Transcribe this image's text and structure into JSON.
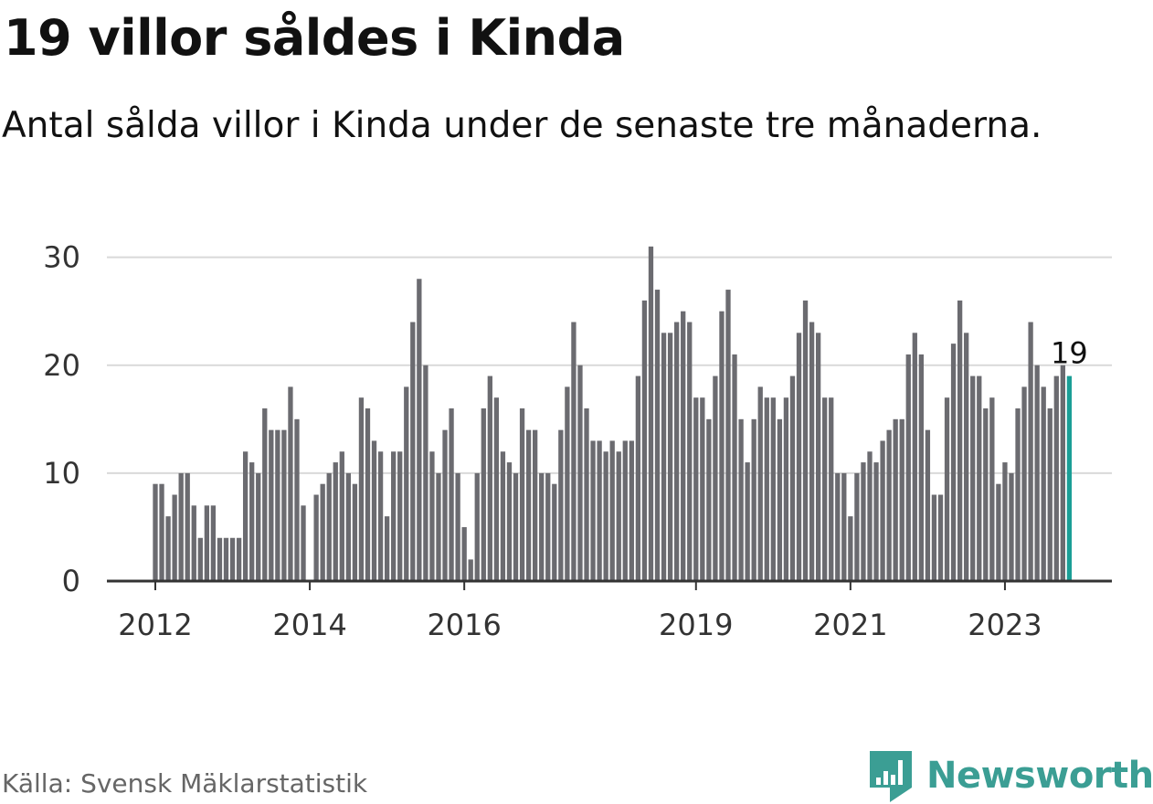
{
  "header": {
    "title": "19 villor såldes i Kinda",
    "subtitle": "Antal sålda villor i Kinda under de senaste tre månaderna."
  },
  "footer": {
    "source": "Källa: Svensk Mäklarstatistik",
    "brand": "Newsworthy"
  },
  "colors": {
    "bar": "#6b6b70",
    "highlight": "#1a9e96",
    "brand": "#3b9e94",
    "grid": "#d9d9d9",
    "axis": "#333333"
  },
  "chart_data": {
    "type": "bar",
    "x_start": "2012-01",
    "x_tick_labels": [
      "2012",
      "2014",
      "2016",
      "2019",
      "2021",
      "2023"
    ],
    "y_ticks": [
      0,
      10,
      20,
      30
    ],
    "ylim": [
      0,
      32
    ],
    "values": [
      9,
      9,
      6,
      8,
      10,
      10,
      7,
      4,
      7,
      7,
      4,
      4,
      4,
      4,
      12,
      11,
      10,
      16,
      14,
      14,
      14,
      18,
      15,
      7,
      0,
      8,
      9,
      10,
      11,
      12,
      10,
      9,
      17,
      16,
      13,
      12,
      6,
      12,
      12,
      18,
      24,
      28,
      20,
      12,
      10,
      14,
      16,
      10,
      5,
      2,
      10,
      16,
      19,
      17,
      12,
      11,
      10,
      16,
      14,
      14,
      10,
      10,
      9,
      14,
      18,
      24,
      20,
      16,
      13,
      13,
      12,
      13,
      12,
      13,
      13,
      19,
      26,
      31,
      27,
      23,
      23,
      24,
      25,
      24,
      17,
      17,
      15,
      19,
      25,
      27,
      21,
      15,
      11,
      15,
      18,
      17,
      17,
      15,
      17,
      19,
      23,
      26,
      24,
      23,
      17,
      17,
      10,
      10,
      6,
      10,
      11,
      12,
      11,
      13,
      14,
      15,
      15,
      21,
      23,
      21,
      14,
      8,
      8,
      17,
      22,
      26,
      23,
      19,
      19,
      16,
      17,
      9,
      11,
      10,
      16,
      18,
      24,
      20,
      18,
      16,
      19,
      20,
      19
    ],
    "highlight_last": true,
    "last_value_label": "19",
    "grid": true
  }
}
